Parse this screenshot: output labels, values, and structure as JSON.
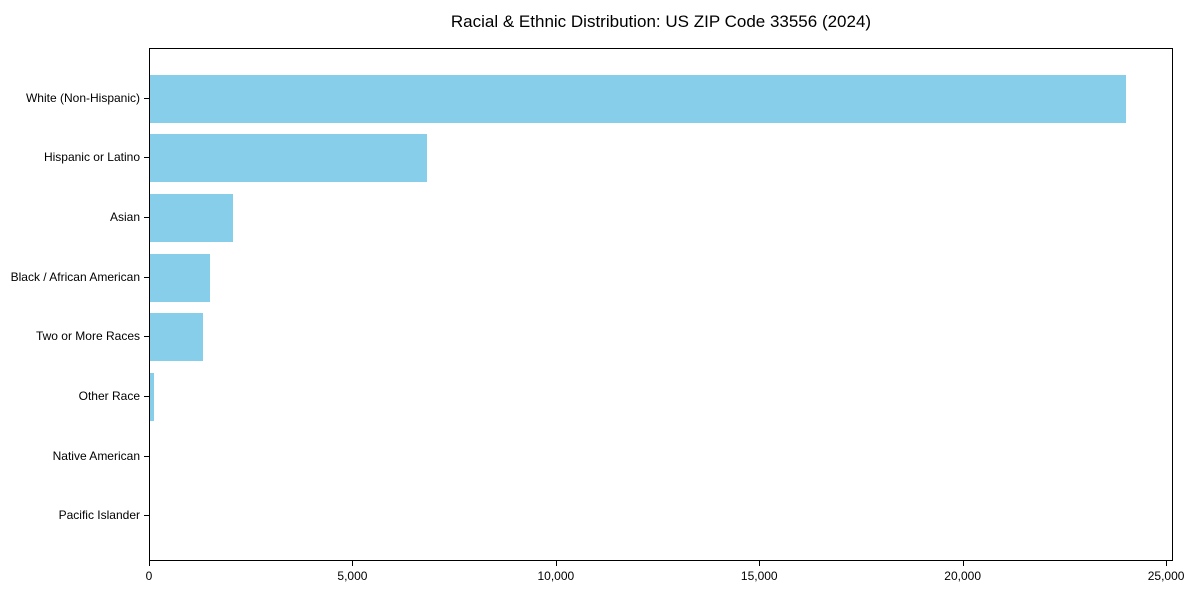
{
  "chart_data": {
    "type": "bar",
    "orientation": "horizontal",
    "title": "Racial & Ethnic Distribution: US ZIP Code 33556 (2024)",
    "categories": [
      "White (Non-Hispanic)",
      "Hispanic or Latino",
      "Asian",
      "Black / African American",
      "Two or More Races",
      "Other Race",
      "Native American",
      "Pacific Islander"
    ],
    "values": [
      24000,
      6820,
      2040,
      1465,
      1300,
      95,
      0,
      0
    ],
    "xlabel": "",
    "ylabel": "",
    "xlim": [
      0,
      25170
    ],
    "xticks": [
      0,
      5000,
      10000,
      15000,
      20000,
      25000
    ],
    "xtick_labels": [
      "0",
      "5,000",
      "10,000",
      "15,000",
      "20,000",
      "25,000"
    ],
    "bar_color": "#87CEEB",
    "spine_color": "#000000",
    "text_color": "#000000",
    "background_color": "#FFFFFF",
    "grid": false,
    "legend": null,
    "data_labels": false
  }
}
